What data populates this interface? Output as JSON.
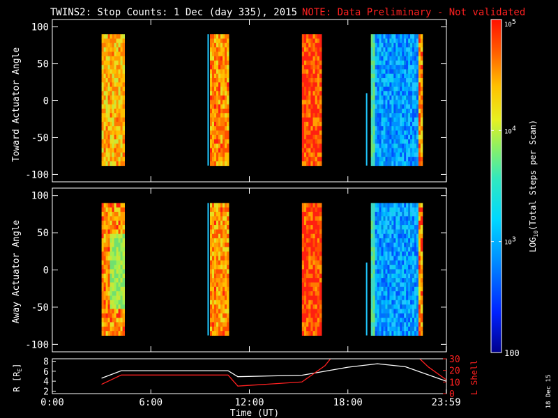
{
  "header": {
    "title": "TWINS2: Stop Counts:  1 Dec (day 335), 2015",
    "note": "NOTE: Data Preliminary - Not validated"
  },
  "colors": {
    "background": "#000000",
    "axes": "#ffffff",
    "note": "#ff2020",
    "r_line": "#ffffff",
    "lshell_line": "#ff2020"
  },
  "chart_data": [
    {
      "type": "heatmap",
      "panel": "toward",
      "ylabel": "Toward Actuator Angle",
      "xlim": [
        0,
        24
      ],
      "ylim": [
        -110,
        110
      ],
      "yticks": [
        100,
        50,
        0,
        -50,
        -100
      ],
      "ytick_labels": [
        "100",
        "50",
        "0",
        "-50",
        "-100"
      ],
      "angle_range": [
        -88,
        90
      ],
      "blocks": [
        {
          "start": 3.0,
          "end": 4.4,
          "level": "high",
          "pattern": "yellow-green with red/orange striation"
        },
        {
          "start": 9.6,
          "end": 10.75,
          "level": "high",
          "pattern": "yellow/orange columns",
          "line_at": 9.45
        },
        {
          "start": 15.2,
          "end": 16.4,
          "level": "high",
          "pattern": "orange/red striated"
        },
        {
          "start": 19.4,
          "end": 22.55,
          "level": "medium",
          "pattern": "blue/cyan, orange at end",
          "line_at": 19.1
        }
      ]
    },
    {
      "type": "heatmap",
      "panel": "away",
      "ylabel": "Away Actuator Angle",
      "xlim": [
        0,
        24
      ],
      "ylim": [
        -110,
        110
      ],
      "yticks": [
        100,
        50,
        0,
        -50,
        -100
      ],
      "ytick_labels": [
        "100",
        "50",
        "0",
        "-50",
        "-100"
      ],
      "angle_range": [
        -88,
        90
      ],
      "blocks": [
        {
          "start": 3.0,
          "end": 4.4,
          "level": "high",
          "pattern": "orange/red top, yellow-green middle"
        },
        {
          "start": 9.6,
          "end": 10.75,
          "level": "high",
          "pattern": "yellow/orange columns",
          "line_at": 9.45
        },
        {
          "start": 15.2,
          "end": 16.4,
          "level": "high",
          "pattern": "orange/red striated"
        },
        {
          "start": 19.4,
          "end": 22.55,
          "level": "medium",
          "pattern": "blue/cyan, orange at end",
          "line_at": 19.1
        }
      ]
    },
    {
      "type": "line",
      "panel": "ephemeris",
      "xlabel": "Time (UT)",
      "xlim": [
        0,
        24
      ],
      "xticks": [
        0,
        6,
        12,
        18,
        23.983
      ],
      "xtick_labels": [
        "0:00",
        "6:00",
        "12:00",
        "18:00",
        "23:59"
      ],
      "left_axis": {
        "label": "R [Rₑ]",
        "label_main": "R [R",
        "label_sub": "E",
        "label_close": "]",
        "ylim": [
          1.5,
          8.5
        ],
        "yticks": [
          2,
          4,
          6,
          8
        ],
        "ytick_labels": [
          "2",
          "4",
          "6",
          "8"
        ]
      },
      "right_axis": {
        "label": "L Shell",
        "ylim": [
          0,
          30
        ],
        "yticks": [
          0,
          10,
          20,
          30
        ],
        "ytick_labels": [
          "0",
          "10",
          "20",
          "30"
        ]
      },
      "series": [
        {
          "axis": "left",
          "color": "#ffffff",
          "x": [
            3.0,
            4.2,
            10.7,
            11.3,
            15.2,
            18.0,
            19.8,
            21.5,
            23.983
          ],
          "y": [
            4.6,
            6.1,
            6.1,
            4.9,
            5.2,
            6.8,
            7.5,
            6.9,
            4.0
          ]
        },
        {
          "axis": "right",
          "color": "#ff2020",
          "x": [
            3.0,
            4.2,
            10.7,
            11.3,
            15.2,
            16.6,
            17.0
          ],
          "y": [
            8.0,
            16.0,
            16.0,
            6.5,
            10.0,
            24.0,
            31.0
          ]
        },
        {
          "axis": "right",
          "color": "#ff2020",
          "x": [
            22.3,
            22.9,
            23.983
          ],
          "y": [
            31.0,
            23.0,
            12.0
          ]
        }
      ]
    },
    {
      "type": "colorbar",
      "label_main": "LOG",
      "label_sub": "10",
      "label_rest": "(Total Steps per Scan)",
      "range": [
        100,
        100000
      ],
      "ticks": [
        {
          "value": 100000,
          "label": "10",
          "sup": "5"
        },
        {
          "value": 10000,
          "label": "10",
          "sup": "4"
        },
        {
          "value": 1000,
          "label": "10",
          "sup": "3"
        },
        {
          "value": 100,
          "label": "100",
          "sup": ""
        }
      ]
    }
  ],
  "footer": {
    "date_stamp": "18 Dec 15"
  }
}
